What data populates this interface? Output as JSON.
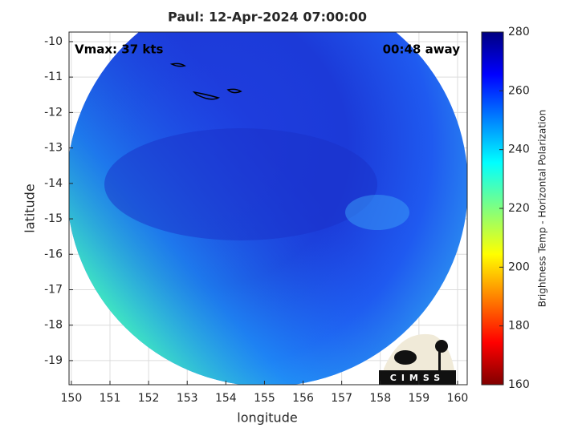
{
  "chart_data": {
    "type": "map",
    "title": "Paul: 12-Apr-2024 07:00:00",
    "annotations": [
      "Vmax: 37 kts",
      "00:48 away"
    ],
    "x_label": "longitude",
    "y_label": "latitude",
    "xlim": [
      149.94,
      160.25
    ],
    "xticks": [
      150,
      151,
      152,
      153,
      154,
      155,
      156,
      157,
      158,
      159,
      160
    ],
    "ylim": [
      -19.68,
      -9.73
    ],
    "yticks": [
      -10,
      -11,
      -12,
      -13,
      -14,
      -15,
      -16,
      -17,
      -18,
      -19
    ],
    "grid": true,
    "colorbar": {
      "label": "Brightness Temp - Horizontal Polarization",
      "lim": [
        160,
        280
      ],
      "ticks": [
        160,
        180,
        200,
        220,
        240,
        260,
        280
      ]
    },
    "logo": "CIMSS"
  }
}
